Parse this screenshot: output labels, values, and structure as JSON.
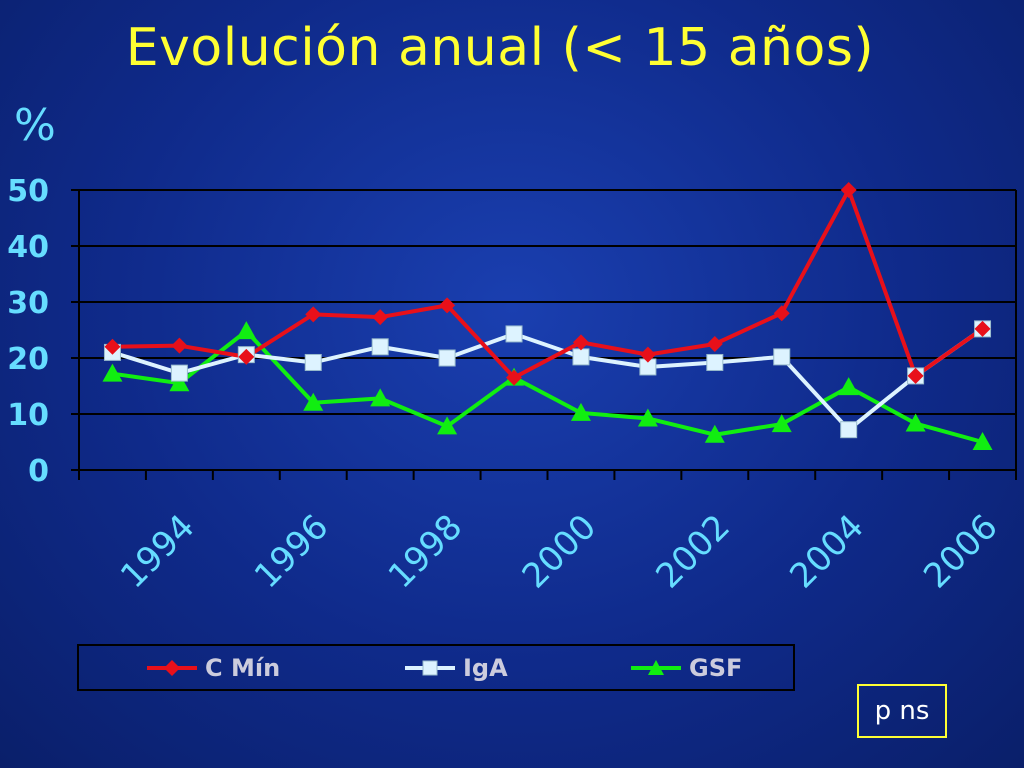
{
  "title": "Evolución anual (< 15 años)",
  "unit": "%",
  "note": "p ns",
  "chart_data": {
    "type": "line",
    "ylim": [
      0,
      50
    ],
    "yticks": [
      0,
      10,
      20,
      30,
      40,
      50
    ],
    "x_tick_labels": [
      "1994",
      "1996",
      "1998",
      "2000",
      "2002",
      "2004",
      "2006"
    ],
    "grid": true,
    "legend_position": "bottom",
    "series": [
      {
        "name": "C Mín",
        "color": "#e8101a",
        "marker": "diamond",
        "values": [
          22,
          22.2,
          20.2,
          27.8,
          27.3,
          29.4,
          16.5,
          22.8,
          20.6,
          22.5,
          28,
          50,
          16.8,
          25.2
        ]
      },
      {
        "name": "IgA",
        "color": "#ddf3ff",
        "marker": "square",
        "values": [
          21,
          17.3,
          20.6,
          19.2,
          22,
          20,
          24.3,
          20.2,
          18.4,
          19.2,
          20.2,
          7.2,
          16.8,
          25.2
        ]
      },
      {
        "name": "GSF",
        "color": "#11ee11",
        "marker": "triangle",
        "values": [
          17.2,
          15.5,
          24.8,
          12,
          12.8,
          7.8,
          16.5,
          10.2,
          9.2,
          6.3,
          8.2,
          14.8,
          8.3,
          5
        ]
      }
    ]
  }
}
